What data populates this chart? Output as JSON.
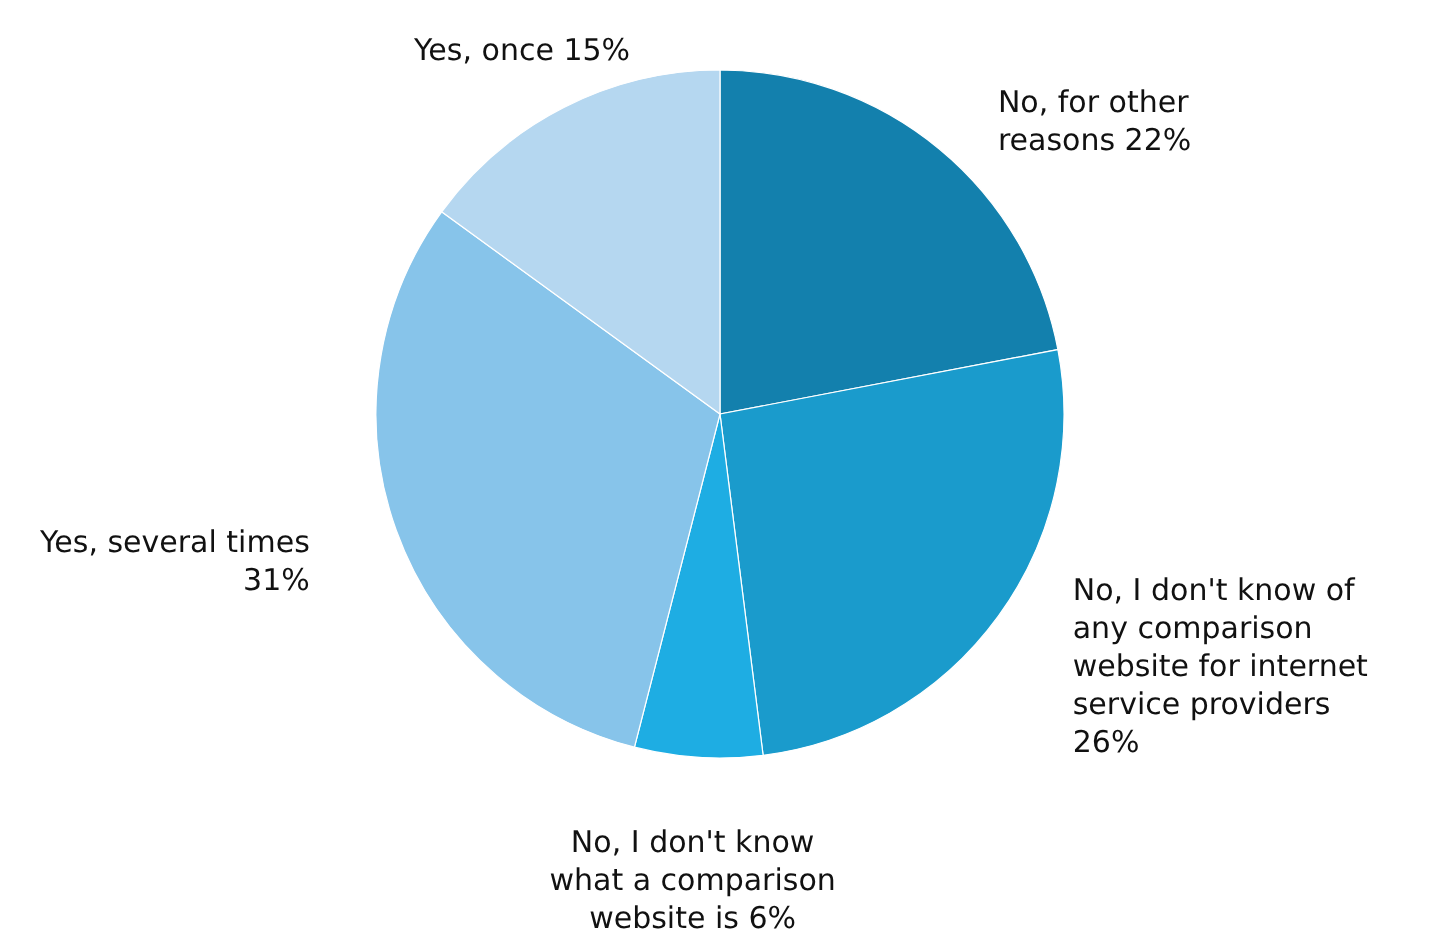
{
  "chart_data": {
    "type": "pie",
    "categories": [
      "No, for other reasons",
      "No, I don't know of any comparison website for internet service providers",
      "No, I don't know what a comparison website is",
      "Yes, several times",
      "Yes, once"
    ],
    "values": [
      22,
      26,
      6,
      31,
      15
    ],
    "colors": [
      "#1380ad",
      "#1a9bcc",
      "#1eade3",
      "#87c4ea",
      "#b5d7f0"
    ],
    "value_labels": [
      "22%",
      "26%",
      "6%",
      "31%",
      "15%"
    ]
  }
}
